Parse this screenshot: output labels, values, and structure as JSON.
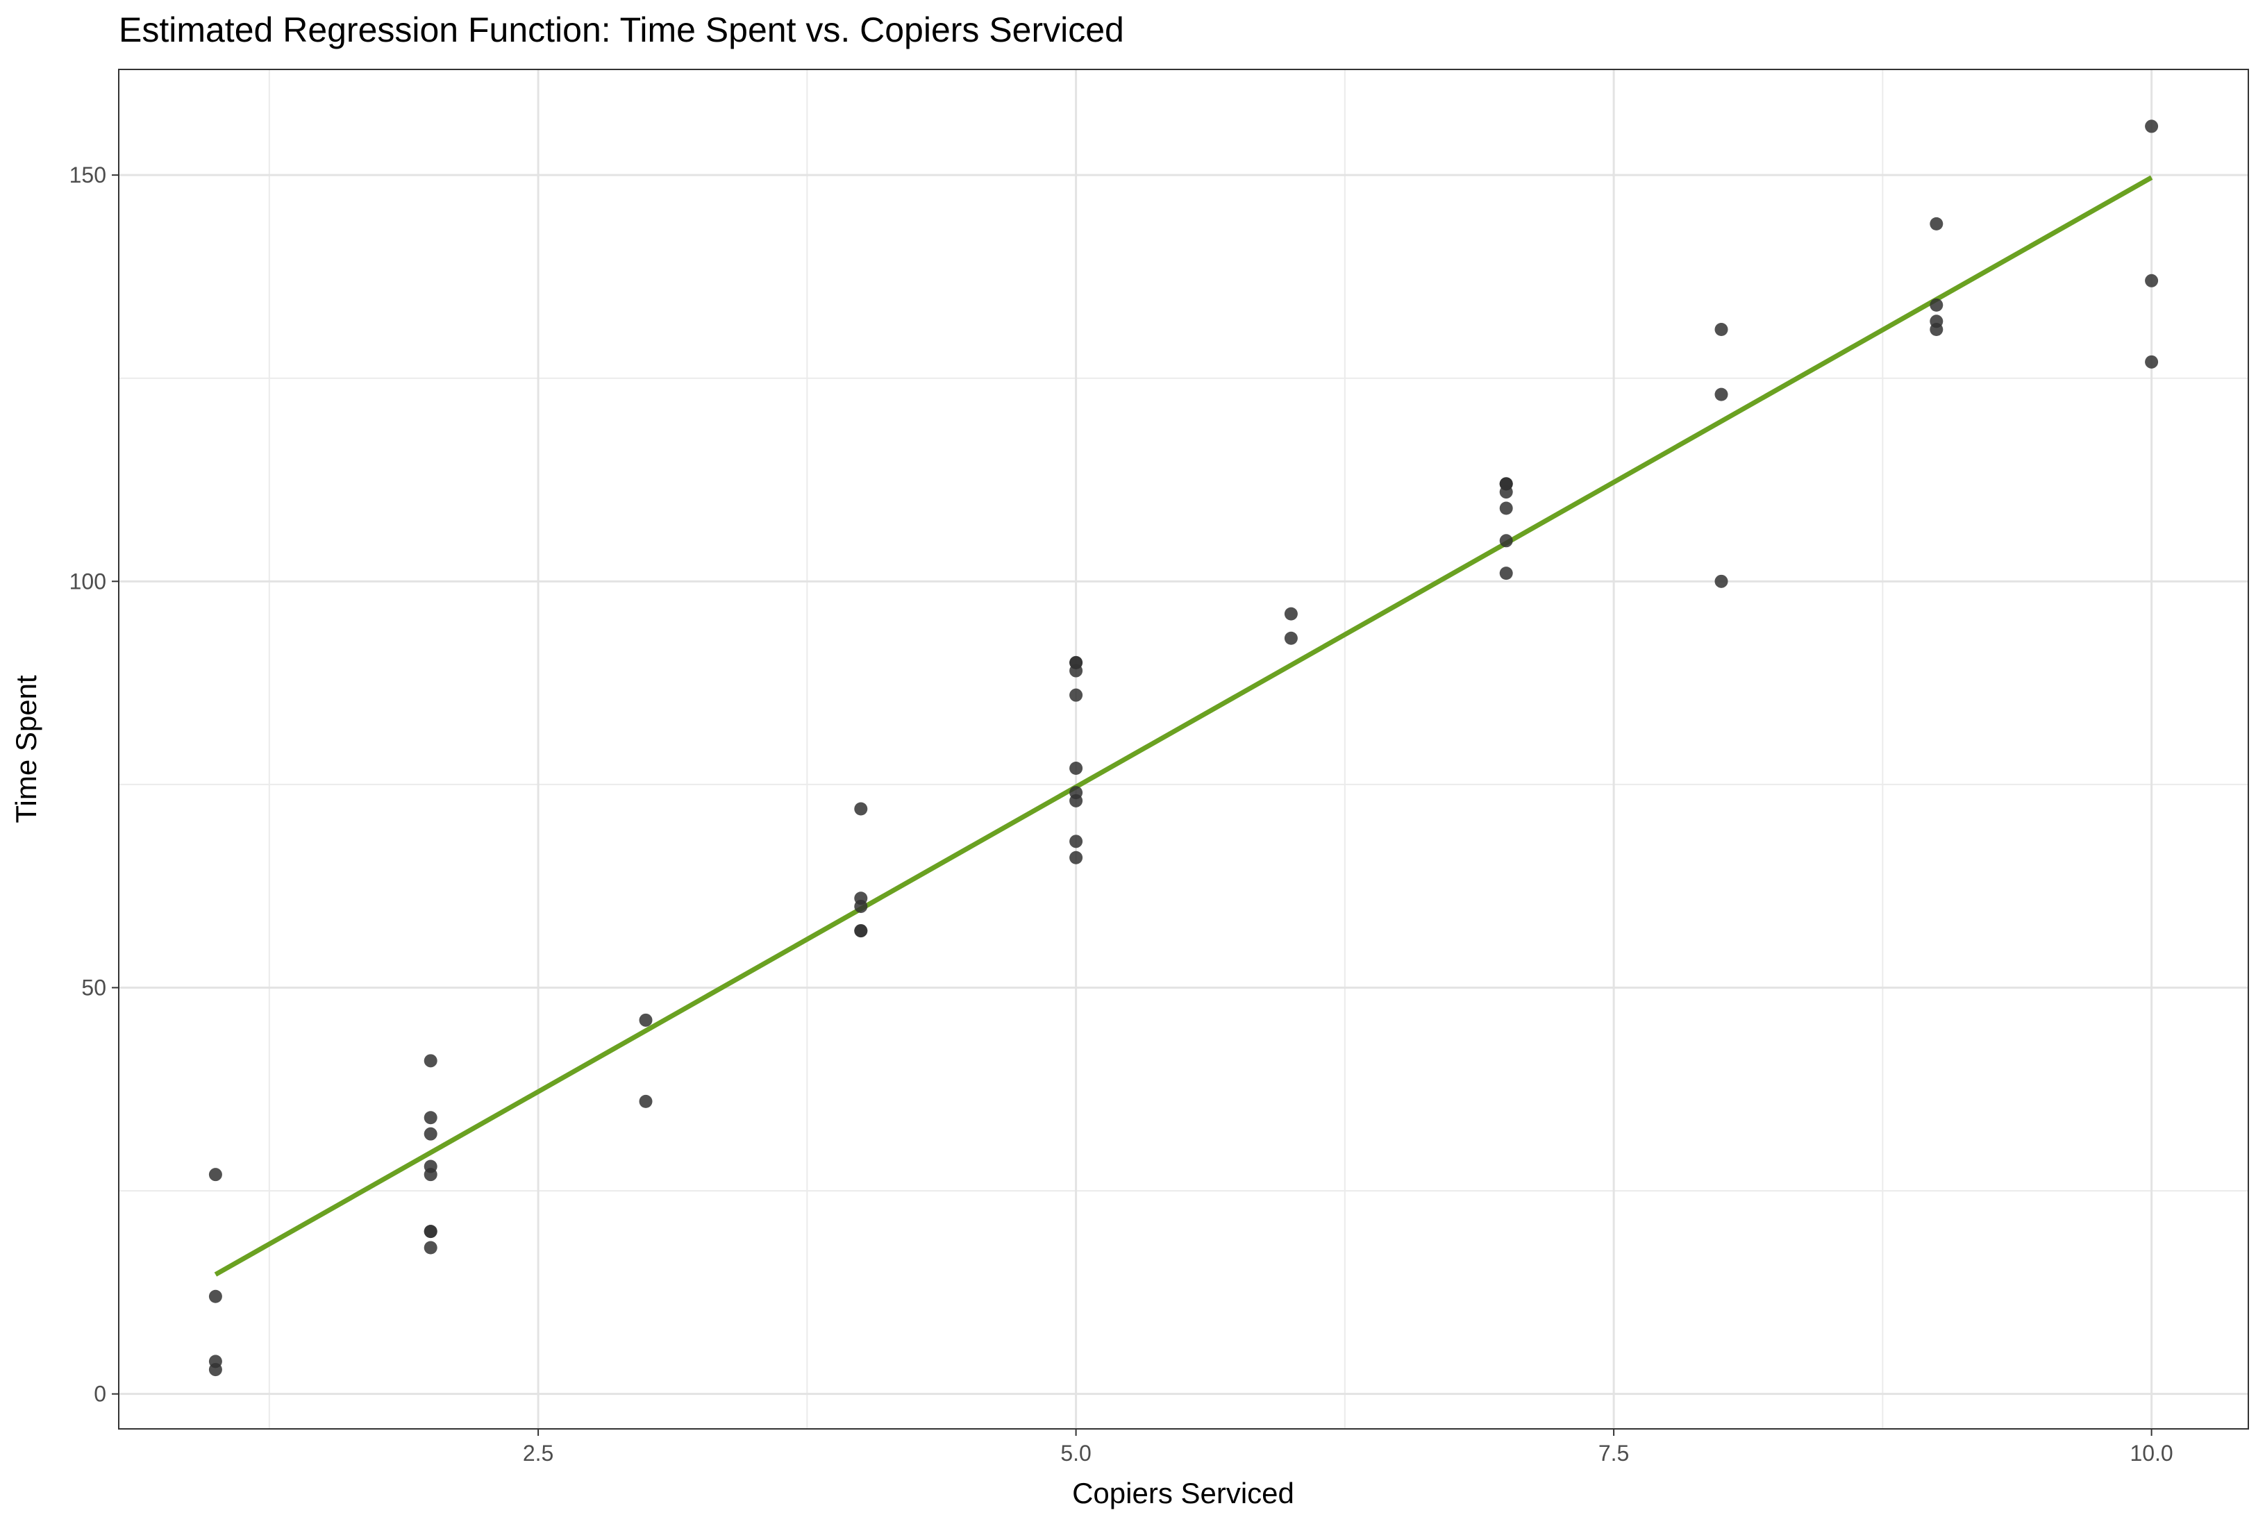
{
  "chart_data": {
    "type": "scatter",
    "title": "Estimated Regression Function: Time Spent vs. Copiers Serviced",
    "xlabel": "Copiers Serviced",
    "ylabel": "Time Spent",
    "xlim": [
      0.55,
      10.45
    ],
    "ylim": [
      -4.3,
      163
    ],
    "x_ticks": [
      2.5,
      5.0,
      7.5,
      10.0
    ],
    "x_tick_labels": [
      "2.5",
      "5.0",
      "7.5",
      "10.0"
    ],
    "y_ticks": [
      0,
      50,
      100,
      150
    ],
    "y_tick_labels": [
      "0",
      "50",
      "100",
      "150"
    ],
    "grid": true,
    "legend": "none",
    "points": {
      "color": "#333333",
      "x": [
        1,
        1,
        1,
        1,
        2,
        2,
        2,
        2,
        2,
        2,
        2,
        2,
        3,
        3,
        4,
        4,
        4,
        4,
        4,
        5,
        5,
        5,
        5,
        5,
        5,
        5,
        5,
        5,
        6,
        6,
        7,
        7,
        7,
        7,
        7,
        7,
        7,
        8,
        8,
        8,
        9,
        9,
        9,
        9,
        10,
        10,
        10
      ],
      "y": [
        27,
        12,
        4,
        3,
        41,
        34,
        32,
        28,
        27,
        20,
        20,
        18,
        46,
        36,
        72,
        61,
        60,
        57,
        57,
        90,
        89,
        86,
        77,
        74,
        73,
        68,
        66,
        90,
        96,
        93,
        112,
        112,
        111,
        109,
        105,
        101,
        112,
        131,
        123,
        100,
        144,
        134,
        132,
        131,
        156,
        137,
        127
      ]
    },
    "regression_line": {
      "color": "#6aa121",
      "x": [
        1,
        10
      ],
      "y": [
        14.7,
        149.7
      ]
    }
  }
}
